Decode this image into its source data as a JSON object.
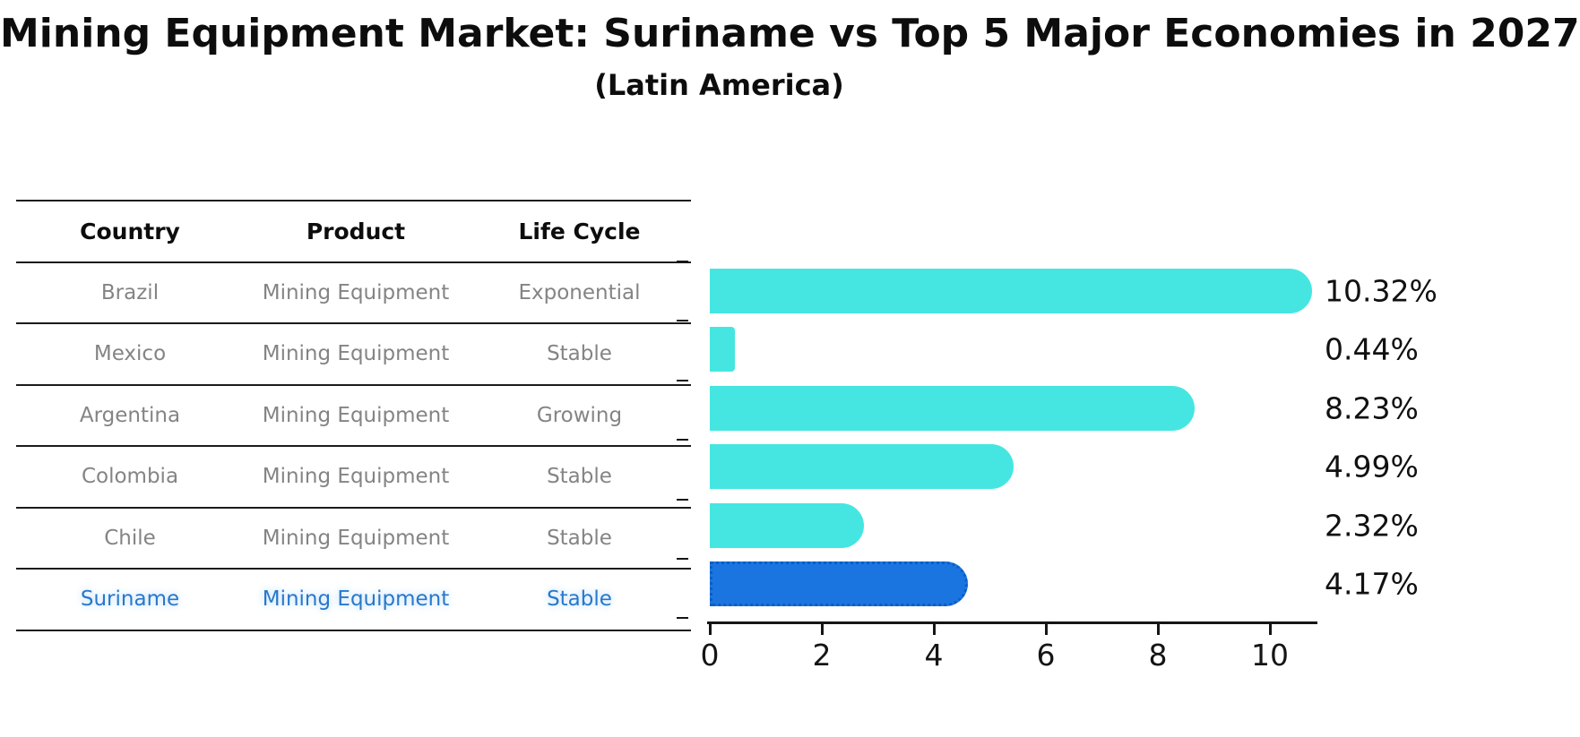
{
  "title": "Mining Equipment Market: Suriname vs Top 5 Major Economies in 2027",
  "subtitle": "(Latin America)",
  "table": {
    "columns": [
      "Country",
      "Product",
      "Life Cycle"
    ],
    "rows": [
      {
        "country": "Brazil",
        "product": "Mining Equipment",
        "life_cycle": "Exponential",
        "highlighted": false
      },
      {
        "country": "Mexico",
        "product": "Mining Equipment",
        "life_cycle": "Stable",
        "highlighted": false
      },
      {
        "country": "Argentina",
        "product": "Mining Equipment",
        "life_cycle": "Growing",
        "highlighted": false
      },
      {
        "country": "Colombia",
        "product": "Mining Equipment",
        "life_cycle": "Stable",
        "highlighted": false
      },
      {
        "country": "Chile",
        "product": "Mining Equipment",
        "life_cycle": "Stable",
        "highlighted": false
      },
      {
        "country": "Suriname",
        "product": "Mining Equipment",
        "life_cycle": "Stable",
        "highlighted": true
      }
    ]
  },
  "chart_data": {
    "type": "bar",
    "orientation": "horizontal",
    "title": "Mining Equipment Market: Suriname vs Top 5 Major Economies in 2027 (Latin America)",
    "categories": [
      "Brazil",
      "Mexico",
      "Argentina",
      "Colombia",
      "Chile",
      "Suriname"
    ],
    "values": [
      10.32,
      0.44,
      8.23,
      4.99,
      2.32,
      4.17
    ],
    "labels": [
      "10.32%",
      "0.44%",
      "8.23%",
      "4.99%",
      "2.32%",
      "4.17%"
    ],
    "value_suffix": "%",
    "x_ticks": [
      "0",
      "2",
      "4",
      "6",
      "8",
      "10"
    ],
    "x_tick_values": [
      0,
      2,
      4,
      6,
      8,
      10
    ],
    "xlim": [
      0,
      10.9
    ],
    "grid": false,
    "legend": false,
    "bar_color": "#45e6e1",
    "highlight_color": "#1b75e0",
    "highlight_border_color": "#0d5dc6",
    "highlight_index": 5,
    "highlight_text_color": "#2878ca"
  }
}
